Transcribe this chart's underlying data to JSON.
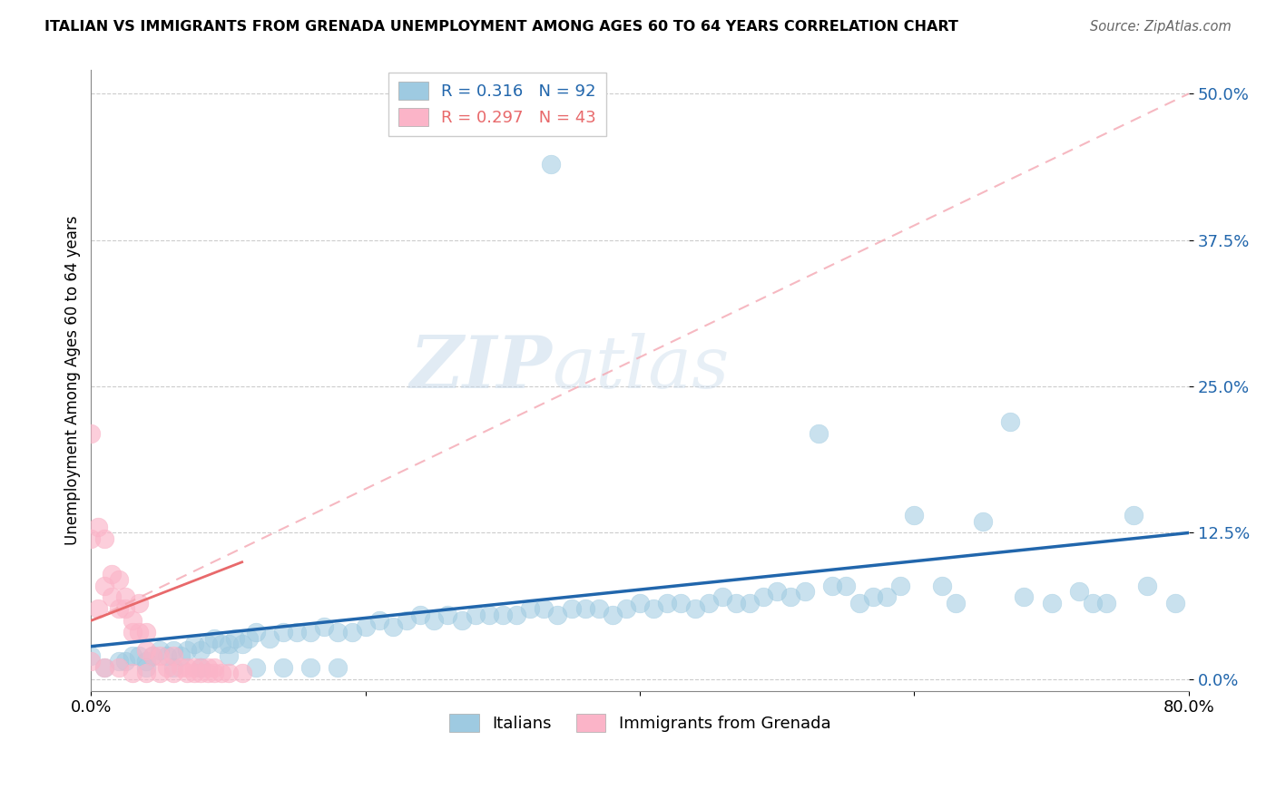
{
  "title": "ITALIAN VS IMMIGRANTS FROM GRENADA UNEMPLOYMENT AMONG AGES 60 TO 64 YEARS CORRELATION CHART",
  "source": "Source: ZipAtlas.com",
  "ylabel": "Unemployment Among Ages 60 to 64 years",
  "xlim": [
    0.0,
    0.8
  ],
  "ylim": [
    -0.01,
    0.52
  ],
  "yticks": [
    0.0,
    0.125,
    0.25,
    0.375,
    0.5
  ],
  "ytick_labels": [
    "0.0%",
    "12.5%",
    "25.0%",
    "37.5%",
    "50.0%"
  ],
  "xticks": [
    0.0,
    0.2,
    0.4,
    0.6,
    0.8
  ],
  "xtick_labels": [
    "0.0%",
    "",
    "",
    "",
    "80.0%"
  ],
  "legend_blue_r": "0.316",
  "legend_blue_n": "92",
  "legend_pink_r": "0.297",
  "legend_pink_n": "43",
  "blue_color": "#9ecae1",
  "pink_color": "#fbb4c8",
  "trendline_blue_color": "#2166ac",
  "trendline_pink_color": "#e8696b",
  "dashed_pink_color": "#f4a7b2",
  "watermark_zip": "ZIP",
  "watermark_atlas": "atlas",
  "blue_scatter_x": [
    0.0,
    0.01,
    0.02,
    0.025,
    0.03,
    0.035,
    0.04,
    0.045,
    0.05,
    0.055,
    0.06,
    0.065,
    0.07,
    0.075,
    0.08,
    0.085,
    0.09,
    0.095,
    0.1,
    0.105,
    0.11,
    0.115,
    0.12,
    0.13,
    0.14,
    0.15,
    0.16,
    0.17,
    0.18,
    0.19,
    0.2,
    0.21,
    0.22,
    0.23,
    0.24,
    0.25,
    0.26,
    0.27,
    0.28,
    0.29,
    0.3,
    0.31,
    0.32,
    0.33,
    0.34,
    0.35,
    0.36,
    0.37,
    0.38,
    0.39,
    0.4,
    0.41,
    0.42,
    0.43,
    0.44,
    0.45,
    0.46,
    0.47,
    0.48,
    0.49,
    0.5,
    0.51,
    0.52,
    0.53,
    0.54,
    0.55,
    0.56,
    0.57,
    0.58,
    0.59,
    0.6,
    0.62,
    0.63,
    0.65,
    0.67,
    0.68,
    0.7,
    0.72,
    0.73,
    0.74,
    0.76,
    0.77,
    0.79,
    0.335,
    0.04,
    0.06,
    0.08,
    0.1,
    0.12,
    0.14,
    0.16,
    0.18
  ],
  "blue_scatter_y": [
    0.02,
    0.01,
    0.015,
    0.015,
    0.02,
    0.02,
    0.015,
    0.02,
    0.025,
    0.02,
    0.025,
    0.02,
    0.025,
    0.03,
    0.025,
    0.03,
    0.035,
    0.03,
    0.03,
    0.035,
    0.03,
    0.035,
    0.04,
    0.035,
    0.04,
    0.04,
    0.04,
    0.045,
    0.04,
    0.04,
    0.045,
    0.05,
    0.045,
    0.05,
    0.055,
    0.05,
    0.055,
    0.05,
    0.055,
    0.055,
    0.055,
    0.055,
    0.06,
    0.06,
    0.055,
    0.06,
    0.06,
    0.06,
    0.055,
    0.06,
    0.065,
    0.06,
    0.065,
    0.065,
    0.06,
    0.065,
    0.07,
    0.065,
    0.065,
    0.07,
    0.075,
    0.07,
    0.075,
    0.21,
    0.08,
    0.08,
    0.065,
    0.07,
    0.07,
    0.08,
    0.14,
    0.08,
    0.065,
    0.135,
    0.22,
    0.07,
    0.065,
    0.075,
    0.065,
    0.065,
    0.14,
    0.08,
    0.065,
    0.44,
    0.01,
    0.01,
    0.01,
    0.02,
    0.01,
    0.01,
    0.01,
    0.01
  ],
  "pink_scatter_x": [
    0.0,
    0.0,
    0.0,
    0.005,
    0.005,
    0.01,
    0.01,
    0.015,
    0.015,
    0.02,
    0.02,
    0.025,
    0.025,
    0.03,
    0.03,
    0.035,
    0.035,
    0.04,
    0.04,
    0.045,
    0.05,
    0.055,
    0.06,
    0.065,
    0.07,
    0.075,
    0.08,
    0.085,
    0.09,
    0.01,
    0.02,
    0.03,
    0.04,
    0.05,
    0.06,
    0.07,
    0.075,
    0.08,
    0.085,
    0.09,
    0.095,
    0.1,
    0.11
  ],
  "pink_scatter_y": [
    0.21,
    0.12,
    0.015,
    0.13,
    0.06,
    0.08,
    0.12,
    0.09,
    0.07,
    0.06,
    0.085,
    0.06,
    0.07,
    0.04,
    0.05,
    0.04,
    0.065,
    0.025,
    0.04,
    0.02,
    0.02,
    0.01,
    0.02,
    0.01,
    0.01,
    0.01,
    0.01,
    0.01,
    0.01,
    0.01,
    0.01,
    0.005,
    0.005,
    0.005,
    0.005,
    0.005,
    0.005,
    0.005,
    0.005,
    0.005,
    0.005,
    0.005,
    0.005
  ],
  "blue_trendline_x": [
    0.0,
    0.8
  ],
  "blue_trendline_y": [
    0.028,
    0.125
  ],
  "pink_trendline_x": [
    0.0,
    0.8
  ],
  "pink_trendline_y": [
    0.05,
    0.5
  ]
}
